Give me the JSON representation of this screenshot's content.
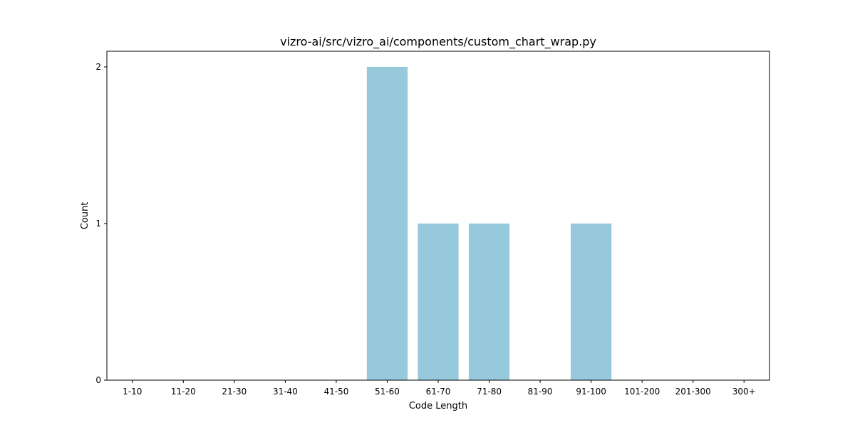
{
  "chart_data": {
    "type": "bar",
    "title": "vizro-ai/src/vizro_ai/components/custom_chart_wrap.py",
    "xlabel": "Code Length",
    "ylabel": "Count",
    "categories": [
      "1-10",
      "11-20",
      "21-30",
      "31-40",
      "41-50",
      "51-60",
      "61-70",
      "71-80",
      "81-90",
      "91-100",
      "101-200",
      "201-300",
      "300+"
    ],
    "values": [
      0,
      0,
      0,
      0,
      0,
      2,
      1,
      1,
      0,
      1,
      0,
      0,
      0
    ],
    "ylim": [
      0,
      2.1
    ],
    "yticks": [
      "0",
      "1",
      "2"
    ],
    "grid": false,
    "legend": "none",
    "colors": {
      "bar": "#96c9dc",
      "axis": "#000000"
    }
  }
}
